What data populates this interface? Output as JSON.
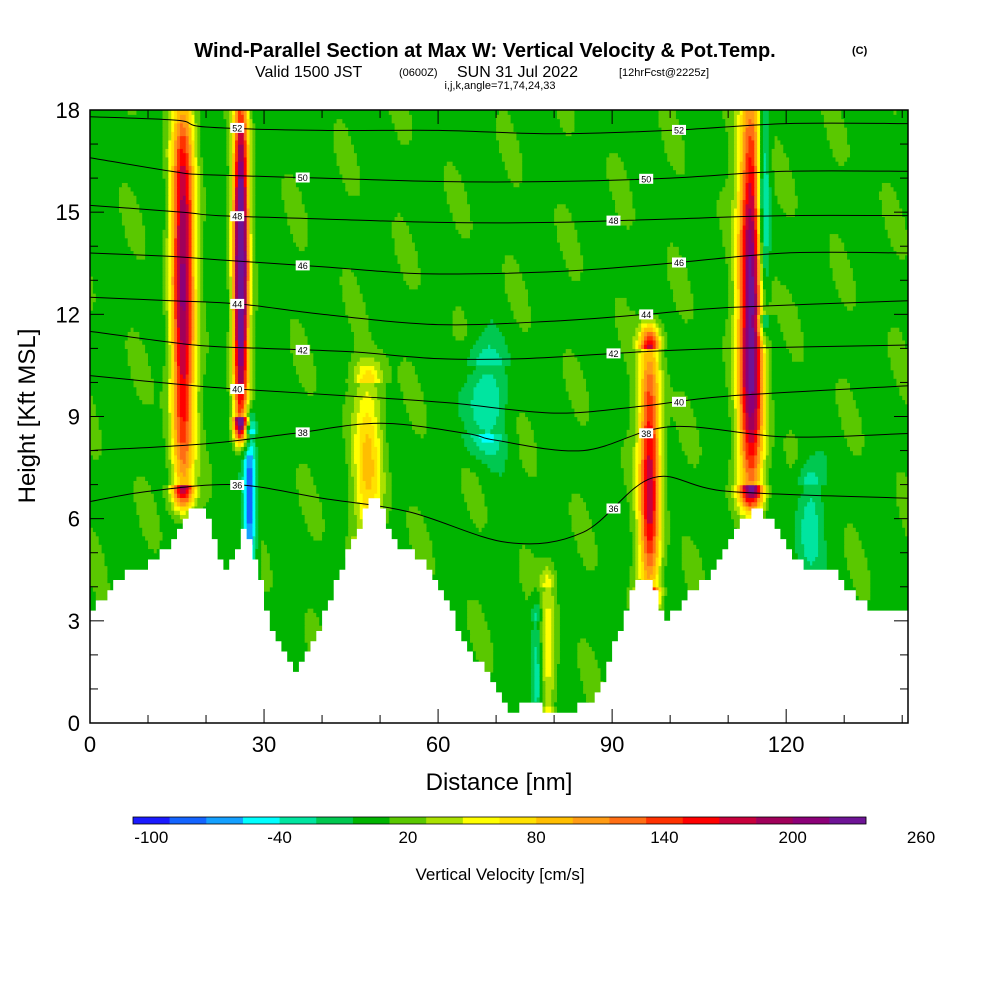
{
  "header": {
    "title": "Wind-Parallel Section at Max W: Vertical Velocity & Pot.Temp.",
    "title_mark": "(C)",
    "valid_prefix": "Valid 1500 JST",
    "valid_utc": "(0600Z)",
    "valid_date": "SUN 31 Jul 2022",
    "forecast": "[12hrFcst@2225z]",
    "indices": "i,j,k,angle=71,74,24,33"
  },
  "colorbar": {
    "label": "Vertical Velocity [cm/s]",
    "tick_labels": [
      "-100",
      "-40",
      "20",
      "80",
      "140",
      "200",
      "260"
    ],
    "colors": [
      "#1a1aff",
      "#1464ff",
      "#14a0ff",
      "#00ffff",
      "#00e5a0",
      "#00c850",
      "#00b400",
      "#5ac800",
      "#aae100",
      "#ffff00",
      "#ffe100",
      "#ffbe00",
      "#ff9b14",
      "#ff6e14",
      "#ff3200",
      "#ff0000",
      "#c8003c",
      "#a0005a",
      "#8c0078",
      "#6e1496"
    ]
  },
  "chart_data": {
    "type": "heatmap",
    "title": "Wind-Parallel Section at Max W: Vertical Velocity & Pot.Temp.",
    "xlabel": "Distance [nm]",
    "ylabel": "Height [Kft MSL]",
    "xlim": [
      0,
      141
    ],
    "ylim": [
      0,
      18
    ],
    "x_ticks": [
      0,
      30,
      60,
      90,
      120
    ],
    "y_ticks": [
      0,
      3,
      6,
      9,
      12,
      15,
      18
    ],
    "fill_variable": "Vertical Velocity [cm/s]",
    "fill_levels": [
      -100,
      -70,
      -40,
      -10,
      20,
      50,
      80,
      110,
      140,
      170,
      200,
      230,
      260
    ],
    "background_w": 0,
    "terrain": [
      [
        0,
        3.3
      ],
      [
        3,
        3.8
      ],
      [
        6,
        4.3
      ],
      [
        9,
        4.6
      ],
      [
        12,
        4.9
      ],
      [
        15,
        5.4
      ],
      [
        17,
        6.1
      ],
      [
        19,
        6.3
      ],
      [
        21,
        5.8
      ],
      [
        23,
        4.3
      ],
      [
        25,
        4.8
      ],
      [
        27,
        5.8
      ],
      [
        29,
        4.5
      ],
      [
        31,
        3.0
      ],
      [
        33,
        2.1
      ],
      [
        35,
        1.5
      ],
      [
        37,
        1.9
      ],
      [
        39,
        2.6
      ],
      [
        41,
        3.5
      ],
      [
        43,
        4.3
      ],
      [
        45,
        5.2
      ],
      [
        47,
        6.0
      ],
      [
        49,
        6.6
      ],
      [
        51,
        6.0
      ],
      [
        53,
        5.2
      ],
      [
        55,
        5.0
      ],
      [
        57,
        4.8
      ],
      [
        59,
        4.3
      ],
      [
        61,
        3.7
      ],
      [
        63,
        3.0
      ],
      [
        65,
        2.3
      ],
      [
        67,
        1.8
      ],
      [
        69,
        1.2
      ],
      [
        71,
        0.6
      ],
      [
        73,
        0.3
      ],
      [
        75,
        0.6
      ],
      [
        77,
        0.5
      ],
      [
        79,
        0.3
      ],
      [
        81,
        0.4
      ],
      [
        83,
        0.3
      ],
      [
        85,
        0.5
      ],
      [
        87,
        0.8
      ],
      [
        89,
        1.5
      ],
      [
        91,
        2.5
      ],
      [
        93,
        3.6
      ],
      [
        95,
        4.2
      ],
      [
        97,
        4.0
      ],
      [
        99,
        3.0
      ],
      [
        101,
        3.3
      ],
      [
        103,
        3.8
      ],
      [
        105,
        4.1
      ],
      [
        107,
        4.3
      ],
      [
        109,
        4.9
      ],
      [
        111,
        5.6
      ],
      [
        113,
        6.0
      ],
      [
        115,
        6.3
      ],
      [
        117,
        6.0
      ],
      [
        119,
        5.4
      ],
      [
        121,
        4.9
      ],
      [
        123,
        4.6
      ],
      [
        125,
        4.6
      ],
      [
        127,
        4.6
      ],
      [
        129,
        4.3
      ],
      [
        131,
        3.8
      ],
      [
        133,
        3.6
      ],
      [
        135,
        3.3
      ],
      [
        138,
        3.3
      ],
      [
        141,
        3.3
      ]
    ],
    "updrafts": [
      {
        "x": 16,
        "sigma": 1.4,
        "y_bottom": 7,
        "y_top": 18,
        "peak_w": 170,
        "peak_y": 13.5
      },
      {
        "x": 26,
        "sigma": 0.9,
        "y_bottom": 9,
        "y_top": 18,
        "peak_w": 230,
        "peak_y": 13.5
      },
      {
        "x": 48,
        "sigma": 1.8,
        "y_bottom": 5.5,
        "y_top": 10,
        "peak_w": 65,
        "peak_y": 7.5
      },
      {
        "x": 96.5,
        "sigma": 1.3,
        "y_bottom": 4,
        "y_top": 11,
        "peak_w": 150,
        "peak_y": 7
      },
      {
        "x": 114,
        "sigma": 1.5,
        "y_bottom": 7,
        "y_top": 18,
        "peak_w": 200,
        "peak_y": 11.5
      },
      {
        "x": 79,
        "sigma": 1.0,
        "y_bottom": 0.5,
        "y_top": 4,
        "peak_w": 45,
        "peak_y": 2
      }
    ],
    "downdrafts": [
      {
        "x": 27.5,
        "sigma": 0.8,
        "y_bottom": 4.5,
        "y_top": 8.5,
        "peak_w": -85,
        "peak_y": 6.5
      },
      {
        "x": 116,
        "sigma": 0.8,
        "y_bottom": 12,
        "y_top": 18,
        "peak_w": -90,
        "peak_y": 15
      },
      {
        "x": 68,
        "sigma": 2.5,
        "y_bottom": 8.5,
        "y_top": 10.5,
        "peak_w": -40,
        "peak_y": 9.5
      },
      {
        "x": 124,
        "sigma": 1.5,
        "y_bottom": 4.5,
        "y_top": 7,
        "peak_w": -40,
        "peak_y": 5.8
      },
      {
        "x": 77,
        "sigma": 0.7,
        "y_bottom": 0.3,
        "y_top": 3,
        "peak_w": -40,
        "peak_y": 1
      }
    ],
    "theta_contours": [
      {
        "label": "52",
        "points": [
          [
            0,
            17.8
          ],
          [
            15,
            17.7
          ],
          [
            20,
            17.5
          ],
          [
            40,
            17.4
          ],
          [
            60,
            17.4
          ],
          [
            80,
            17.3
          ],
          [
            100,
            17.4
          ],
          [
            120,
            17.6
          ],
          [
            141,
            17.6
          ]
        ]
      },
      {
        "label": "50",
        "points": [
          [
            0,
            16.6
          ],
          [
            14,
            16.2
          ],
          [
            20,
            16.1
          ],
          [
            40,
            16.0
          ],
          [
            60,
            15.9
          ],
          [
            80,
            15.9
          ],
          [
            100,
            16.0
          ],
          [
            120,
            16.2
          ],
          [
            141,
            16.2
          ]
        ]
      },
      {
        "label": "48",
        "points": [
          [
            0,
            15.2
          ],
          [
            16,
            15.0
          ],
          [
            22,
            14.9
          ],
          [
            40,
            14.8
          ],
          [
            60,
            14.7
          ],
          [
            80,
            14.7
          ],
          [
            100,
            14.8
          ],
          [
            120,
            14.9
          ],
          [
            141,
            14.9
          ]
        ]
      },
      {
        "label": "46",
        "points": [
          [
            0,
            13.8
          ],
          [
            14,
            13.7
          ],
          [
            22,
            13.6
          ],
          [
            40,
            13.4
          ],
          [
            56,
            13.2
          ],
          [
            70,
            13.2
          ],
          [
            85,
            13.3
          ],
          [
            100,
            13.5
          ],
          [
            120,
            13.8
          ],
          [
            141,
            13.8
          ]
        ]
      },
      {
        "label": "44",
        "points": [
          [
            0,
            12.5
          ],
          [
            14,
            12.4
          ],
          [
            26,
            12.3
          ],
          [
            40,
            12.0
          ],
          [
            60,
            11.7
          ],
          [
            80,
            11.8
          ],
          [
            96,
            12.0
          ],
          [
            110,
            12.2
          ],
          [
            141,
            12.4
          ]
        ]
      },
      {
        "label": "42",
        "points": [
          [
            0,
            11.5
          ],
          [
            18,
            11.1
          ],
          [
            30,
            11.0
          ],
          [
            45,
            10.9
          ],
          [
            60,
            10.7
          ],
          [
            75,
            10.7
          ],
          [
            95,
            10.9
          ],
          [
            110,
            11.0
          ],
          [
            141,
            11.1
          ]
        ]
      },
      {
        "label": "40",
        "points": [
          [
            0,
            10.2
          ],
          [
            18,
            9.9
          ],
          [
            26,
            9.8
          ],
          [
            45,
            9.6
          ],
          [
            62,
            9.4
          ],
          [
            80,
            9.1
          ],
          [
            95,
            9.3
          ],
          [
            110,
            9.6
          ],
          [
            141,
            9.9
          ]
        ]
      },
      {
        "label": "38",
        "points": [
          [
            0,
            8.0
          ],
          [
            20,
            8.2
          ],
          [
            35,
            8.5
          ],
          [
            50,
            8.8
          ],
          [
            65,
            8.5
          ],
          [
            70,
            8.3
          ],
          [
            85,
            8.0
          ],
          [
            100,
            8.7
          ],
          [
            120,
            8.4
          ],
          [
            141,
            8.5
          ]
        ]
      },
      {
        "label": "36",
        "points": [
          [
            0,
            6.5
          ],
          [
            10,
            6.8
          ],
          [
            25,
            7.0
          ],
          [
            40,
            6.6
          ],
          [
            55,
            6.2
          ],
          [
            72,
            5.3
          ],
          [
            85,
            5.6
          ],
          [
            97,
            7.2
          ],
          [
            110,
            6.8
          ],
          [
            141,
            6.6
          ]
        ]
      }
    ]
  }
}
